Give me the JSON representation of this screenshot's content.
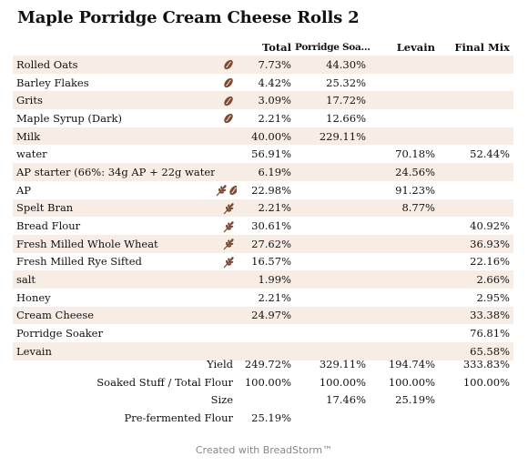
{
  "title": "Maple Porridge Cream Cheese Rolls 2",
  "columns": {
    "total": "Total",
    "soaker": "Porridge Soa…",
    "levain": "Levain",
    "final": "Final Mix"
  },
  "colors": {
    "row_shade": "#f8ede4",
    "icon_brown": "#7a4a33"
  },
  "ingredients": [
    {
      "name": "Rolled Oats",
      "icons": [
        "grain-bean-icon"
      ],
      "total": "7.73%",
      "soaker": "44.30%",
      "levain": "",
      "final": ""
    },
    {
      "name": "Barley Flakes",
      "icons": [
        "grain-bean-icon"
      ],
      "total": "4.42%",
      "soaker": "25.32%",
      "levain": "",
      "final": ""
    },
    {
      "name": "Grits",
      "icons": [
        "grain-bean-icon"
      ],
      "total": "3.09%",
      "soaker": "17.72%",
      "levain": "",
      "final": ""
    },
    {
      "name": "Maple Syrup (Dark)",
      "icons": [
        "grain-bean-icon"
      ],
      "total": "2.21%",
      "soaker": "12.66%",
      "levain": "",
      "final": ""
    },
    {
      "name": "Milk",
      "icons": [],
      "total": "40.00%",
      "soaker": "229.11%",
      "levain": "",
      "final": ""
    },
    {
      "name": "water",
      "icons": [],
      "total": "56.91%",
      "soaker": "",
      "levain": "70.18%",
      "final": "52.44%"
    },
    {
      "name": "AP starter (66%: 34g AP + 22g water)",
      "icons": [],
      "total": "6.19%",
      "soaker": "",
      "levain": "24.56%",
      "final": ""
    },
    {
      "name": "AP",
      "icons": [
        "wheat-icon",
        "grain-bean-icon"
      ],
      "total": "22.98%",
      "soaker": "",
      "levain": "91.23%",
      "final": ""
    },
    {
      "name": "Spelt Bran",
      "icons": [
        "wheat-icon"
      ],
      "total": "2.21%",
      "soaker": "",
      "levain": "8.77%",
      "final": ""
    },
    {
      "name": "Bread Flour",
      "icons": [
        "wheat-icon"
      ],
      "total": "30.61%",
      "soaker": "",
      "levain": "",
      "final": "40.92%"
    },
    {
      "name": "Fresh Milled Whole Wheat",
      "icons": [
        "wheat-icon"
      ],
      "total": "27.62%",
      "soaker": "",
      "levain": "",
      "final": "36.93%"
    },
    {
      "name": "Fresh Milled Rye Sifted",
      "icons": [
        "wheat-icon"
      ],
      "total": "16.57%",
      "soaker": "",
      "levain": "",
      "final": "22.16%"
    },
    {
      "name": "salt",
      "icons": [],
      "total": "1.99%",
      "soaker": "",
      "levain": "",
      "final": "2.66%"
    },
    {
      "name": "Honey",
      "icons": [],
      "total": "2.21%",
      "soaker": "",
      "levain": "",
      "final": "2.95%"
    },
    {
      "name": "Cream Cheese",
      "icons": [],
      "total": "24.97%",
      "soaker": "",
      "levain": "",
      "final": "33.38%"
    },
    {
      "name": "Porridge Soaker",
      "icons": [],
      "total": "",
      "soaker": "",
      "levain": "",
      "final": "76.81%"
    },
    {
      "name": "Levain",
      "icons": [],
      "total": "",
      "soaker": "",
      "levain": "",
      "final": "65.58%"
    }
  ],
  "summary": [
    {
      "label": "Yield",
      "total": "249.72%",
      "soaker": "329.11%",
      "levain": "194.74%",
      "final": "333.83%"
    },
    {
      "label": "Soaked Stuff / Total Flour",
      "total": "100.00%",
      "soaker": "100.00%",
      "levain": "100.00%",
      "final": "100.00%"
    },
    {
      "label": "Size",
      "total": "",
      "soaker": "17.46%",
      "levain": "25.19%",
      "final": ""
    },
    {
      "label": "Pre-fermented Flour",
      "total": "25.19%",
      "soaker": "",
      "levain": "",
      "final": ""
    }
  ],
  "footer": "Created with BreadStorm™"
}
